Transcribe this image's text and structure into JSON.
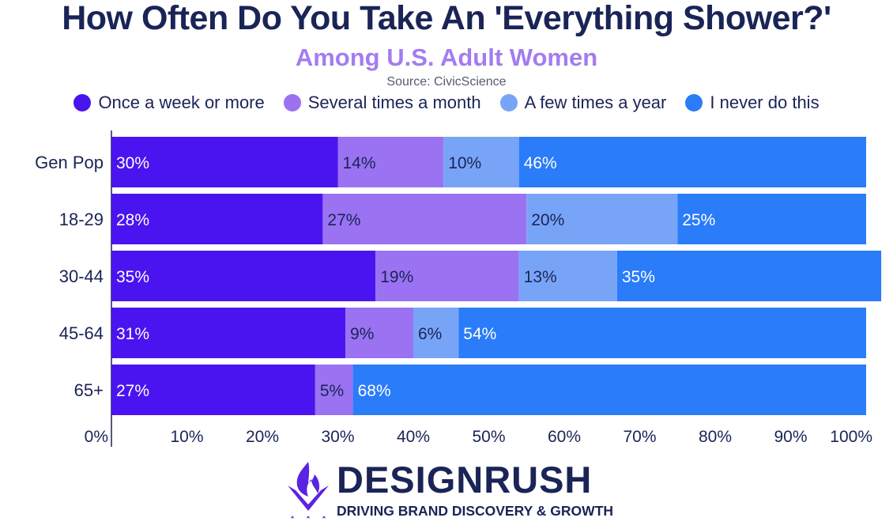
{
  "colors": {
    "accent_title": "#1a2456",
    "subtitle": "#a37cf0",
    "once_week": "#4a14f0",
    "several_month": "#9a72f2",
    "few_year": "#78a4f8",
    "never": "#2a7cf8",
    "logo_purple": "#5a23e0"
  },
  "chart_data": {
    "type": "bar",
    "orientation": "horizontal",
    "stacked": true,
    "title": "How Often Do You Take An 'Everything Shower?'",
    "subtitle": "Among U.S. Adult Women",
    "source": "Source: CivicScience",
    "categories": [
      "Gen Pop",
      "18-29",
      "30-44",
      "45-64",
      "65+"
    ],
    "series": [
      {
        "name": "Once a week or more",
        "color": "#4a14f0",
        "values": [
          30,
          28,
          35,
          31,
          27
        ]
      },
      {
        "name": "Several times a month",
        "color": "#9a72f2",
        "values": [
          14,
          27,
          19,
          9,
          5
        ]
      },
      {
        "name": "A few times a year",
        "color": "#78a4f8",
        "values": [
          10,
          20,
          13,
          6,
          0
        ]
      },
      {
        "name": "I never do this",
        "color": "#2a7cf8",
        "values": [
          46,
          25,
          35,
          54,
          68
        ]
      }
    ],
    "xlim": [
      0,
      100
    ],
    "x_ticks": [
      "0%",
      "10%",
      "20%",
      "30%",
      "40%",
      "50%",
      "60%",
      "70%",
      "80%",
      "90%",
      "100%"
    ],
    "legend_position": "top",
    "grid": false
  },
  "logo": {
    "wordmark": "DESIGNRUSH",
    "tagline": "DRIVING BRAND DISCOVERY & GROWTH",
    "icon": "flame-shield-icon"
  }
}
